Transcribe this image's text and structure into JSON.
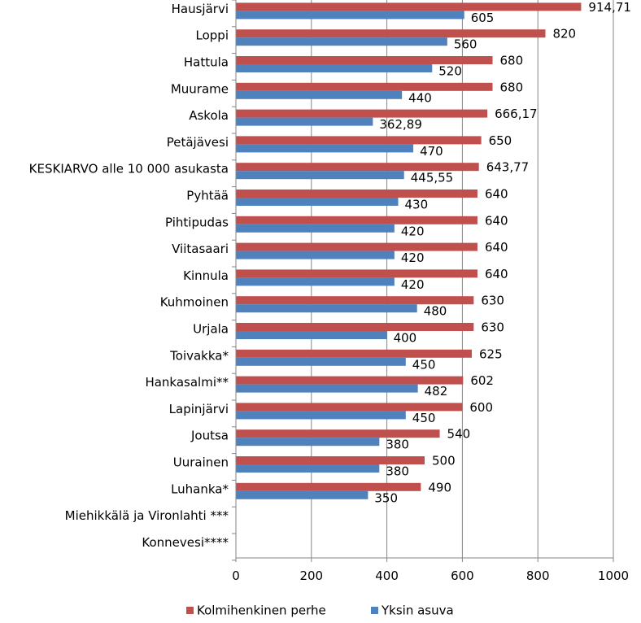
{
  "chart_data": {
    "type": "bar",
    "orientation": "horizontal",
    "categories": [
      "Hausjärvi",
      "Loppi",
      "Hattula",
      "Muurame",
      "Askola",
      "Petäjävesi",
      "KESKIARVO alle 10 000 asukasta",
      "Pyhtää",
      "Pihtipudas",
      "Viitasaari",
      "Kinnula",
      "Kuhmoinen",
      "Urjala",
      "Toivakka*",
      "Hankasalmi**",
      "Lapinjärvi",
      "Joutsa",
      "Uurainen",
      "Luhanka*",
      "Miehikkälä ja Vironlahti ***",
      "Konnevesi****"
    ],
    "series": [
      {
        "name": "Kolmihenkinen perhe",
        "color": "#C0504D",
        "values": [
          914.71,
          820,
          680,
          680,
          666.17,
          650,
          643.77,
          640,
          640,
          640,
          640,
          630,
          630,
          625,
          602,
          600,
          540,
          500,
          490,
          null,
          null
        ],
        "labels": [
          "914,71",
          "820",
          "680",
          "680",
          "666,17",
          "650",
          "643,77",
          "640",
          "640",
          "640",
          "640",
          "630",
          "630",
          "625",
          "602",
          "600",
          "540",
          "500",
          "490",
          "",
          ""
        ]
      },
      {
        "name": "Yksin asuva",
        "color": "#4F81BD",
        "values": [
          605,
          560,
          520,
          440,
          362.89,
          470,
          445.55,
          430,
          420,
          420,
          420,
          480,
          400,
          450,
          482,
          450,
          380,
          380,
          350,
          null,
          null
        ],
        "labels": [
          "605",
          "560",
          "520",
          "440",
          "362,89",
          "470",
          "445,55",
          "430",
          "420",
          "420",
          "420",
          "480",
          "400",
          "450",
          "482",
          "450",
          "380",
          "380",
          "350",
          "",
          ""
        ]
      }
    ],
    "xlim": [
      0,
      1000
    ],
    "xticks": [
      0,
      200,
      400,
      600,
      800,
      1000
    ],
    "xtick_labels": [
      "0",
      "200",
      "400",
      "600",
      "800",
      "1000"
    ],
    "grid": "vertical",
    "legend_position": "bottom",
    "title": "",
    "xlabel": "",
    "ylabel": ""
  }
}
